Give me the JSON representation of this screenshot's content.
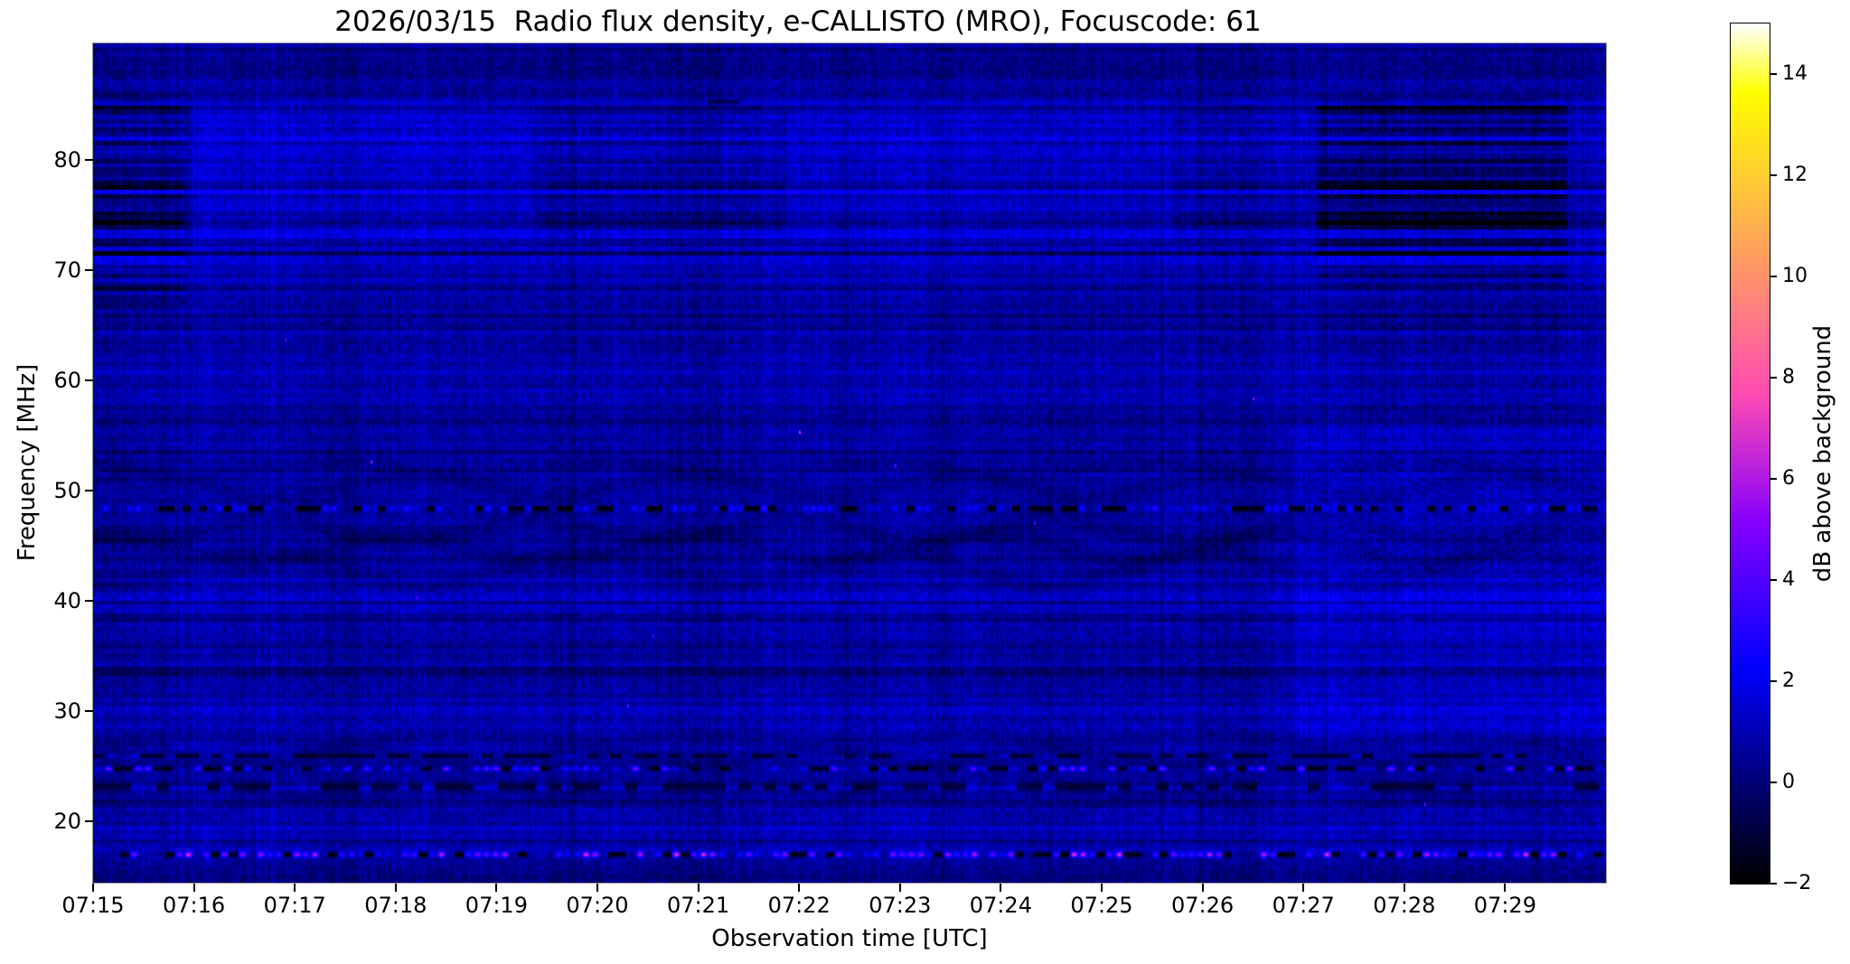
{
  "chart_data": {
    "type": "heatmap",
    "title": "2026/03/15  Radio flux density, e-CALLISTO (MRO), Focuscode: 61",
    "xlabel": "Observation time [UTC]",
    "ylabel": "Frequency [MHz]",
    "colorbar_label": "dB above background",
    "x_tick_labels": [
      "07:15",
      "07:16",
      "07:17",
      "07:18",
      "07:19",
      "07:20",
      "07:21",
      "07:22",
      "07:23",
      "07:24",
      "07:25",
      "07:26",
      "07:27",
      "07:28",
      "07:29"
    ],
    "x_tick_minutes": [
      0,
      1,
      2,
      3,
      4,
      5,
      6,
      7,
      8,
      9,
      10,
      11,
      12,
      13,
      14
    ],
    "time_axis_min": [
      0,
      15
    ],
    "y_tick_values": [
      20,
      30,
      40,
      50,
      60,
      70,
      80
    ],
    "y_tick_labels": [
      "20",
      "30",
      "40",
      "50",
      "60",
      "70",
      "80"
    ],
    "freq_axis_mhz": [
      14.4,
      90.6
    ],
    "value_range_db": [
      -2,
      15
    ],
    "colorbar_tick_values": [
      -2,
      0,
      2,
      4,
      6,
      8,
      10,
      12,
      14
    ],
    "colorbar_tick_labels": [
      "−2",
      "0",
      "2",
      "4",
      "6",
      "8",
      "10",
      "12",
      "14"
    ],
    "colormap": "gnuplot2",
    "grid": false,
    "legend": "none",
    "background_db": 0.75,
    "features": [
      "Quiet dark-blue dynamic spectrum (~0-1.5 dB) with no solar burst; fine vertical striping and ~5 px horizontal channel banding",
      "Speckled RFI channel at ~48.4 MHz across full duration (alternating black dropouts and bright blue dots)",
      "Bright speckled RFI channel at ~17 MHz (dots up to ~7 dB, some pink/magenta)",
      "Speckled RFI channel at ~24.8 MHz with dark dashed rows at 22-26 MHz",
      "Slow wavy dark interference fringes between ~41 and 53 MHz and faint ones near 21-27 MHz",
      "Time-block gain steps in the 72-86 MHz band at ~07:16, 07:19.4, 07:22, 07:25.7, 07:27.1: alternating brighter-blue and dark striped segments",
      "Dark heavily-striped block 68-86 MHz from ~07:27.1 to ~07:29.6",
      "Brighter blue patch 27-56 MHz after ~07:27 with diagonal fringe pattern",
      "Thin brighter line near 85.3 MHz; darker bands near 88-90, 61-63, 33-37 and 21-24 MHz"
    ],
    "render": {
      "seed": 42,
      "channels": 190,
      "noise": {
        "row": 0.27,
        "row_dark_frac": 0.1,
        "row_dark_extra": 0.55,
        "col": 0.2,
        "col_slow": 0.09,
        "cell_amp": 0.9,
        "pixel_amp": 0.4,
        "top_row_mult": 1.6,
        "top_f": 70
      },
      "blocks": [
        {
          "t0": -0.2,
          "t1": 0.95,
          "f0": 66,
          "f1": 86.5,
          "dv": -0.55,
          "stripe": 1.3
        },
        {
          "t0": 0.95,
          "t1": 4.4,
          "f0": 72,
          "f1": 85.5,
          "dv": 0.55,
          "stripe": 0
        },
        {
          "t0": 4.4,
          "t1": 6.85,
          "f0": 72,
          "f1": 85.5,
          "dv": 0.05,
          "stripe": 0.4
        },
        {
          "t0": 6.85,
          "t1": 10.75,
          "f0": 72,
          "f1": 85.5,
          "dv": 0.45,
          "stripe": 0
        },
        {
          "t0": 10.75,
          "t1": 12.1,
          "f0": 72,
          "f1": 85.5,
          "dv": 0.1,
          "stripe": 0.3
        },
        {
          "t0": 12.1,
          "t1": 14.65,
          "f0": 68,
          "f1": 86.2,
          "dv": -0.85,
          "stripe": 1.6
        },
        {
          "t0": 14.65,
          "t1": 15.3,
          "f0": 70,
          "f1": 86,
          "dv": 0.15,
          "stripe": 0.2
        },
        {
          "t0": 11.85,
          "t1": 15.3,
          "f0": 27,
          "f1": 56.5,
          "dv": 0.5,
          "stripe": 0
        },
        {
          "t0": -0.2,
          "t1": 0.95,
          "f0": 18,
          "f1": 66,
          "dv": -0.12,
          "stripe": 0.15
        },
        {
          "t0": 12.1,
          "t1": 14.65,
          "f0": 56.5,
          "f1": 68,
          "dv": -0.15,
          "stripe": 0.3
        }
      ],
      "h_bands": [
        {
          "f0": 87.3,
          "f1": 91.5,
          "dv": -0.3
        },
        {
          "f0": 70.5,
          "f1": 72.0,
          "dv": -0.1
        },
        {
          "f0": 60.5,
          "f1": 63.5,
          "dv": -0.18
        },
        {
          "f0": 55.0,
          "f1": 58.5,
          "dv": -0.12
        },
        {
          "f0": 33.0,
          "f1": 37.0,
          "dv": -0.13
        },
        {
          "f0": 21.0,
          "f1": 24.2,
          "dv": -0.25
        },
        {
          "f0": 18.4,
          "f1": 20.3,
          "dv": 0.15
        },
        {
          "f0": 13.5,
          "f1": 16.4,
          "dv": -0.35
        }
      ],
      "waves": [
        {
          "f": 50.4,
          "amp": 0.9,
          "period": 2.7,
          "phase": 0.5,
          "dv": -0.5,
          "sigma": 0.5
        },
        {
          "f": 51.9,
          "amp": 0.6,
          "period": 2.7,
          "phase": 2.2,
          "dv": -0.35,
          "sigma": 0.45
        },
        {
          "f": 46.4,
          "amp": 1.1,
          "period": 2.6,
          "phase": 3.6,
          "dv": -0.5,
          "sigma": 0.55
        },
        {
          "f": 44.7,
          "amp": 1.3,
          "period": 2.9,
          "phase": 1.2,
          "dv": -0.45,
          "sigma": 0.6
        },
        {
          "f": 42.9,
          "amp": 1.5,
          "period": 3.1,
          "phase": 4.4,
          "dv": -0.4,
          "sigma": 0.6
        },
        {
          "f": 27.4,
          "amp": 0.7,
          "period": 2.5,
          "phase": 5.1,
          "dv": -0.3,
          "sigma": 0.5
        },
        {
          "f": 25.9,
          "amp": 0.8,
          "period": 2.3,
          "phase": 0.8,
          "dv": -0.35,
          "sigma": 0.5
        },
        {
          "f": 21.3,
          "amp": 0.9,
          "period": 2.8,
          "phase": 2.9,
          "dv": -0.3,
          "sigma": 0.55
        }
      ],
      "fringes": [
        {
          "t0": 11.9,
          "f0": 48.9,
          "f1": 53.6,
          "slope": 3.8,
          "spacing": 1.4,
          "dv": -0.34
        },
        {
          "t0": 11.9,
          "f0": 40.8,
          "f1": 47.8,
          "slope": -3.8,
          "spacing": 1.4,
          "dv": -0.34
        }
      ],
      "rfi_lines": [
        {
          "f": 48.35,
          "halfw": 0.38,
          "cell": 9,
          "p_dark": 0.4,
          "p_bright": 0.34,
          "dark": -2.2,
          "b_lo": 1.6,
          "b_hi": 3.4,
          "seed": 11
        },
        {
          "f": 24.75,
          "halfw": 0.32,
          "cell": 11,
          "p_dark": 0.3,
          "p_bright": 0.38,
          "dark": -1.9,
          "b_lo": 1.4,
          "b_hi": 5.2,
          "seed": 23
        },
        {
          "f": 16.95,
          "halfw": 0.36,
          "cell": 10,
          "p_dark": 0.26,
          "p_bright": 0.55,
          "dark": -2.1,
          "b_lo": 2.0,
          "b_hi": 7.2,
          "seed": 37
        },
        {
          "f": 23.1,
          "halfw": 0.55,
          "cell": 14,
          "p_dark": 0.5,
          "p_bright": 0.06,
          "dark": -1.3,
          "b_lo": 1.2,
          "b_hi": 1.8,
          "seed": 51
        },
        {
          "f": 25.9,
          "halfw": 0.3,
          "cell": 13,
          "p_dark": 0.45,
          "p_bright": 0.1,
          "dark": -1.5,
          "b_lo": 1.3,
          "b_hi": 2.0,
          "seed": 81
        },
        {
          "f": 85.3,
          "halfw": 0.28,
          "cell": 34,
          "p_dark": 0.05,
          "p_bright": 0.75,
          "dark": -1.0,
          "b_lo": 1.2,
          "b_hi": 1.8,
          "seed": 67
        }
      ],
      "dark_columns": [
        {
          "t": 4.75,
          "dv": -0.5,
          "w": 2
        },
        {
          "t": 6.2,
          "dv": -0.28,
          "w": 1.5
        },
        {
          "t": 9.5,
          "dv": -0.2,
          "w": 1.5
        },
        {
          "t": 12.55,
          "dv": -0.25,
          "w": 1.5
        }
      ],
      "bright_pixels": [
        {
          "t": 2.75,
          "f": 52.6,
          "v": 6.0
        },
        {
          "t": 3.2,
          "f": 40.3,
          "v": 4.8
        },
        {
          "t": 5.55,
          "f": 36.8,
          "v": 4.5
        },
        {
          "t": 7.0,
          "f": 55.3,
          "v": 7.0
        },
        {
          "t": 7.95,
          "f": 52.3,
          "v": 5.0
        },
        {
          "t": 9.33,
          "f": 47.1,
          "v": 4.6
        },
        {
          "t": 11.5,
          "f": 58.4,
          "v": 5.5
        },
        {
          "t": 13.2,
          "f": 21.5,
          "v": 5.0
        },
        {
          "t": 5.3,
          "f": 30.5,
          "v": 4.5
        },
        {
          "t": 1.9,
          "f": 63.7,
          "v": 4.3
        }
      ]
    }
  }
}
